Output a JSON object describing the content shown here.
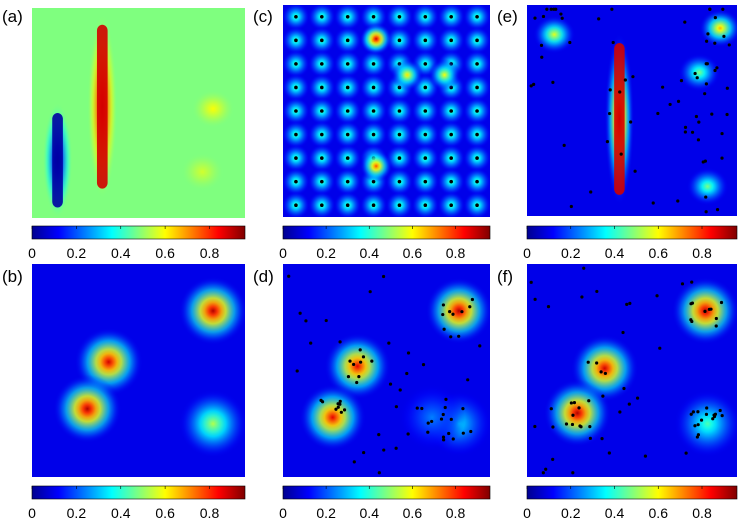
{
  "colormap": [
    "#00008f",
    "#0000ff",
    "#007fff",
    "#00ffff",
    "#7fff7f",
    "#ffff00",
    "#ff7f00",
    "#ff0000",
    "#7f0000"
  ],
  "chart_data": [
    {
      "type": "heatmap",
      "label": "(a)",
      "colorbar_ticks": [
        "0",
        "0.2",
        "0.4",
        "0.6",
        "0.8"
      ],
      "clim": [
        0,
        0.96
      ],
      "features": [
        {
          "kind": "ridge",
          "x": 0.33,
          "y0": 0.08,
          "y1": 0.86,
          "value": 0.92
        },
        {
          "kind": "ridge",
          "x": 0.12,
          "y0": 0.5,
          "y1": 0.95,
          "value": 0.02
        },
        {
          "kind": "blob",
          "x": 0.85,
          "y": 0.48,
          "value": 0.62
        },
        {
          "kind": "blob",
          "x": 0.8,
          "y": 0.78,
          "value": 0.58
        }
      ],
      "background_value": 0.5
    },
    {
      "type": "heatmap",
      "label": "(b)",
      "colorbar_ticks": [
        "0",
        "0.2",
        "0.4",
        "0.6",
        "0.8"
      ],
      "clim": [
        0,
        0.96
      ],
      "peaks": [
        {
          "x": 0.85,
          "y": 0.22,
          "value": 0.95
        },
        {
          "x": 0.36,
          "y": 0.46,
          "value": 0.92
        },
        {
          "x": 0.26,
          "y": 0.68,
          "value": 0.95
        },
        {
          "x": 0.85,
          "y": 0.75,
          "value": 0.55
        }
      ]
    },
    {
      "type": "heatmap",
      "label": "(c)",
      "colorbar_ticks": [
        "0",
        "0.2",
        "0.4",
        "0.6",
        "0.8"
      ],
      "clim": [
        0,
        0.96
      ],
      "grid_cols": 8,
      "grid_rows": 9,
      "peak_value": 0.45,
      "hot_points": [
        {
          "x": 0.45,
          "y": 0.16,
          "value": 0.92
        },
        {
          "x": 0.45,
          "y": 0.76,
          "value": 0.8
        },
        {
          "x": 0.6,
          "y": 0.33,
          "value": 0.65
        },
        {
          "x": 0.78,
          "y": 0.33,
          "value": 0.62
        }
      ]
    },
    {
      "type": "heatmap",
      "label": "(d)",
      "colorbar_ticks": [
        "0",
        "0.2",
        "0.4",
        "0.6",
        "0.8"
      ],
      "clim": [
        0,
        0.96
      ],
      "peaks": [
        {
          "x": 0.85,
          "y": 0.22,
          "value": 0.95
        },
        {
          "x": 0.36,
          "y": 0.48,
          "value": 0.9
        },
        {
          "x": 0.24,
          "y": 0.72,
          "value": 0.9
        },
        {
          "x": 0.85,
          "y": 0.75,
          "value": 0.35
        },
        {
          "x": 0.72,
          "y": 0.72,
          "value": 0.25
        }
      ]
    },
    {
      "type": "heatmap",
      "label": "(e)",
      "colorbar_ticks": [
        "0",
        "0.2",
        "0.4",
        "0.6",
        "0.8"
      ],
      "clim": [
        0,
        0.96
      ],
      "features": [
        {
          "kind": "ridge",
          "x": 0.44,
          "y0": 0.18,
          "y1": 0.9,
          "value": 0.92
        },
        {
          "kind": "blob",
          "x": 0.82,
          "y": 0.32,
          "value": 0.5
        },
        {
          "kind": "blob",
          "x": 0.86,
          "y": 0.86,
          "value": 0.5
        },
        {
          "kind": "blob",
          "x": 0.13,
          "y": 0.14,
          "value": 0.6
        },
        {
          "kind": "blob",
          "x": 0.92,
          "y": 0.11,
          "value": 0.7
        }
      ]
    },
    {
      "type": "heatmap",
      "label": "(f)",
      "colorbar_ticks": [
        "0",
        "0.2",
        "0.4",
        "0.6",
        "0.8"
      ],
      "clim": [
        0,
        0.96
      ],
      "peaks": [
        {
          "x": 0.85,
          "y": 0.22,
          "value": 0.95
        },
        {
          "x": 0.37,
          "y": 0.49,
          "value": 0.92
        },
        {
          "x": 0.24,
          "y": 0.7,
          "value": 0.95
        },
        {
          "x": 0.86,
          "y": 0.75,
          "value": 0.45
        }
      ]
    }
  ]
}
